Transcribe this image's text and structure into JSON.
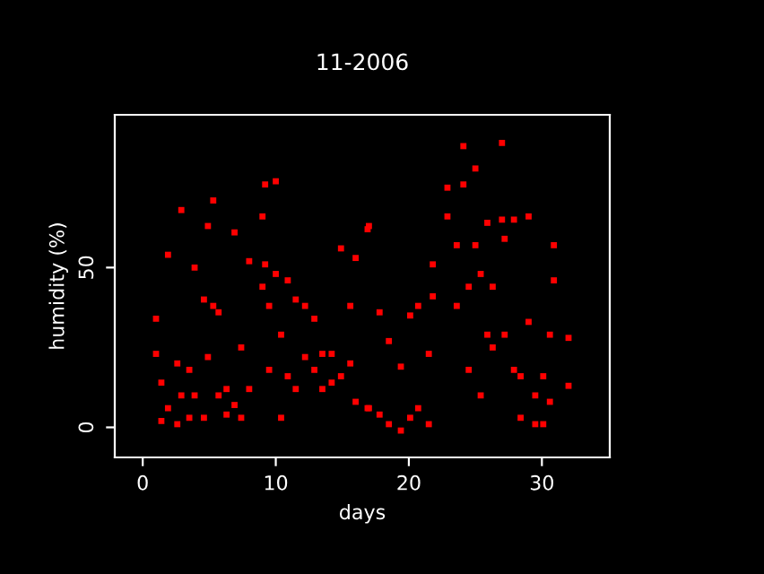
{
  "chart_data": {
    "type": "scatter",
    "title": "11-2006",
    "xlabel": "days",
    "ylabel": "humidity (%)",
    "xlim": [
      -2.1,
      35.1
    ],
    "ylim": [
      -9.4,
      97.8
    ],
    "xticks": [
      0,
      10,
      20,
      30
    ],
    "yticks": [
      0,
      50
    ],
    "grid": false,
    "marker": "square",
    "series": [
      {
        "color": "#ff0000",
        "x": [
          1.0,
          1.0,
          1.4,
          1.4,
          1.9,
          1.9,
          2.6,
          2.6,
          2.9,
          2.9,
          3.5,
          3.5,
          3.9,
          3.9,
          4.6,
          4.6,
          4.9,
          4.9,
          5.3,
          5.3,
          5.7,
          5.7,
          6.3,
          6.3,
          6.9,
          6.9,
          7.4,
          7.4,
          8.0,
          8.0,
          9.0,
          9.0,
          9.2,
          9.2,
          9.5,
          9.5,
          10.0,
          10.0,
          10.4,
          10.4,
          10.9,
          10.9,
          11.5,
          11.5,
          12.2,
          12.2,
          12.9,
          12.9,
          13.5,
          13.5,
          14.2,
          14.2,
          14.9,
          14.9,
          15.6,
          15.6,
          16.0,
          16.0,
          16.9,
          16.9,
          17.0,
          17.0,
          17.8,
          17.8,
          18.5,
          18.5,
          19.4,
          19.4,
          20.1,
          20.1,
          20.7,
          20.7,
          21.5,
          21.5,
          21.8,
          21.8,
          22.9,
          22.9,
          23.6,
          23.6,
          24.1,
          24.1,
          24.5,
          24.5,
          25.0,
          25.0,
          25.4,
          25.4,
          25.9,
          25.9,
          26.3,
          26.3,
          27.0,
          27.0,
          27.2,
          27.2,
          27.9,
          27.9,
          28.4,
          28.4,
          29.0,
          29.0,
          29.5,
          29.5,
          30.1,
          30.1,
          30.6,
          30.6,
          30.9,
          30.9,
          32.0,
          32.0
        ],
        "values": [
          34,
          23,
          14,
          2,
          54,
          6,
          20,
          1,
          68,
          10,
          18,
          3,
          50,
          10,
          40,
          3,
          63,
          22,
          71,
          38,
          36,
          10,
          12,
          4,
          61,
          7,
          25,
          3,
          52,
          12,
          66,
          44,
          76,
          51,
          38,
          18,
          77,
          48,
          29,
          3,
          46,
          16,
          40,
          12,
          38,
          22,
          34,
          18,
          23,
          12,
          23,
          14,
          56,
          16,
          38,
          20,
          53,
          8,
          62,
          6,
          63,
          6,
          36,
          4,
          27,
          1,
          19,
          -1,
          35,
          3,
          38,
          6,
          23,
          1,
          51,
          41,
          75,
          66,
          57,
          38,
          88,
          76,
          44,
          18,
          81,
          57,
          48,
          10,
          64,
          29,
          44,
          25,
          89,
          65,
          59,
          29,
          65,
          18,
          16,
          3,
          66,
          33,
          10,
          1,
          16,
          1,
          29,
          8,
          57,
          46,
          28,
          13
        ]
      }
    ]
  }
}
